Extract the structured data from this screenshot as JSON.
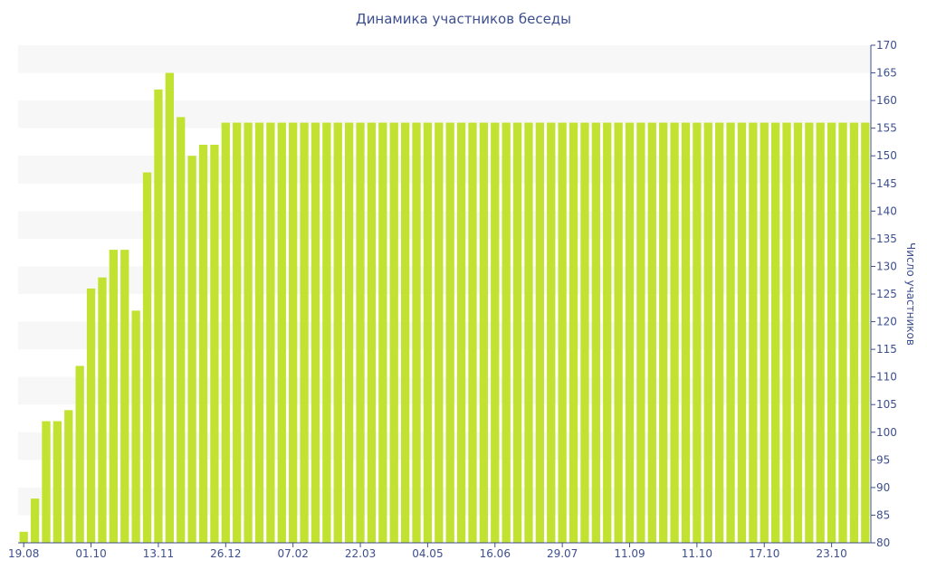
{
  "chart_data": {
    "type": "bar",
    "title": "Динамика участников беседы",
    "ylabel": "Число участников",
    "xlabel": "",
    "ylim": [
      80,
      170
    ],
    "ytick_step": 5,
    "bar_color": "#c2e232",
    "band_color": "#f7f7f7",
    "text_color": "#3d4f8e",
    "grid": "horizontal bands",
    "y_axis_position": "right",
    "x_tick_labels": [
      {
        "index": 0,
        "label": "19.08"
      },
      {
        "index": 6,
        "label": "01.10"
      },
      {
        "index": 12,
        "label": "13.11"
      },
      {
        "index": 18,
        "label": "26.12"
      },
      {
        "index": 24,
        "label": "07.02"
      },
      {
        "index": 30,
        "label": "22.03"
      },
      {
        "index": 36,
        "label": "04.05"
      },
      {
        "index": 42,
        "label": "16.06"
      },
      {
        "index": 48,
        "label": "29.07"
      },
      {
        "index": 54,
        "label": "11.09"
      },
      {
        "index": 60,
        "label": "11.10"
      },
      {
        "index": 66,
        "label": "17.10"
      },
      {
        "index": 72,
        "label": "23.10"
      }
    ],
    "values": [
      82,
      88,
      102,
      102,
      104,
      112,
      126,
      128,
      133,
      133,
      122,
      147,
      162,
      165,
      157,
      150,
      152,
      152,
      156,
      156,
      156,
      156,
      156,
      156,
      156,
      156,
      156,
      156,
      156,
      156,
      156,
      156,
      156,
      156,
      156,
      156,
      156,
      156,
      156,
      156,
      156,
      156,
      156,
      156,
      156,
      156,
      156,
      156,
      156,
      156,
      156,
      156,
      156,
      156,
      156,
      156,
      156,
      156,
      156,
      156,
      156,
      156,
      156,
      156,
      156,
      156,
      156,
      156,
      156,
      156,
      156,
      156,
      156,
      156,
      156,
      156
    ]
  }
}
